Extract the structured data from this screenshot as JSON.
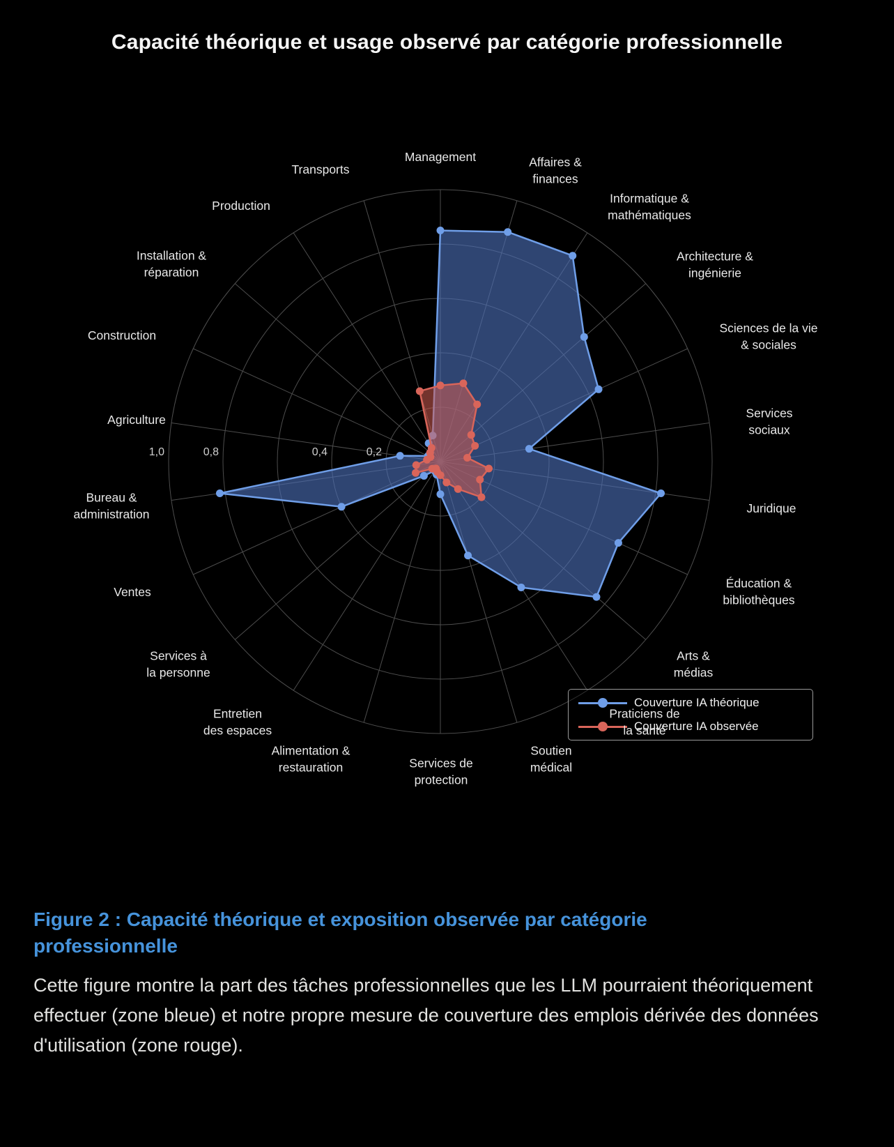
{
  "title": "Capacité théorique et usage observé par catégorie professionnelle",
  "caption": {
    "heading": "Figure 2 : Capacité théorique et exposition observée par catégorie professionnelle",
    "body": "Cette figure montre la part des tâches professionnelles que les LLM pourraient théoriquement effectuer (zone bleue) et notre propre mesure de couverture des emplois dérivée des données d'utilisation (zone rouge)."
  },
  "chart_data": {
    "type": "radar",
    "title": "Capacité théorique et usage observé par catégorie professionnelle",
    "rmax": 1.0,
    "grid": true,
    "grid_levels": [
      0.2,
      0.4,
      0.6,
      0.8,
      1.0
    ],
    "grid_color": "#4d4d4d",
    "legend_position": "bottom-right",
    "radial_ticks": [
      {
        "label": "1,0",
        "value": 1.0
      },
      {
        "label": "0,8",
        "value": 0.8
      },
      {
        "label": "0,4",
        "value": 0.4
      },
      {
        "label": "0,2",
        "value": 0.2
      }
    ],
    "categories": [
      "Management",
      "Affaires &\nfinances",
      "Informatique &\nmathématiques",
      "Architecture &\ningénierie",
      "Sciences de la vie\n& sociales",
      "Services\nsociaux",
      "Juridique",
      "Éducation &\nbibliothèques",
      "Arts &\nmédias",
      "Praticiens de\nla santé",
      "Soutien\nmédical",
      "Services de\nprotection",
      "Alimentation &\nrestauration",
      "Entretien\ndes espaces",
      "Services à\nla personne",
      "Ventes",
      "Bureau &\nadministration",
      "Agriculture",
      "Construction",
      "Installation &\nréparation",
      "Production",
      "Transports"
    ],
    "series": [
      {
        "name": "Couverture IA théorique",
        "color": "#6f9ee8",
        "fill": "rgba(76,112,184,0.62)",
        "values": [
          0.85,
          0.88,
          0.9,
          0.7,
          0.64,
          0.33,
          0.82,
          0.72,
          0.76,
          0.55,
          0.36,
          0.12,
          0.05,
          0.04,
          0.08,
          0.4,
          0.82,
          0.15,
          0.05,
          0.05,
          0.08,
          0.1
        ]
      },
      {
        "name": "Couverture IA observée",
        "color": "#d9655a",
        "fill": "rgba(212,92,82,0.55)",
        "values": [
          0.28,
          0.3,
          0.25,
          0.15,
          0.14,
          0.1,
          0.18,
          0.16,
          0.2,
          0.12,
          0.08,
          0.05,
          0.04,
          0.03,
          0.04,
          0.1,
          0.09,
          0.05,
          0.04,
          0.05,
          0.06,
          0.27
        ]
      }
    ]
  }
}
